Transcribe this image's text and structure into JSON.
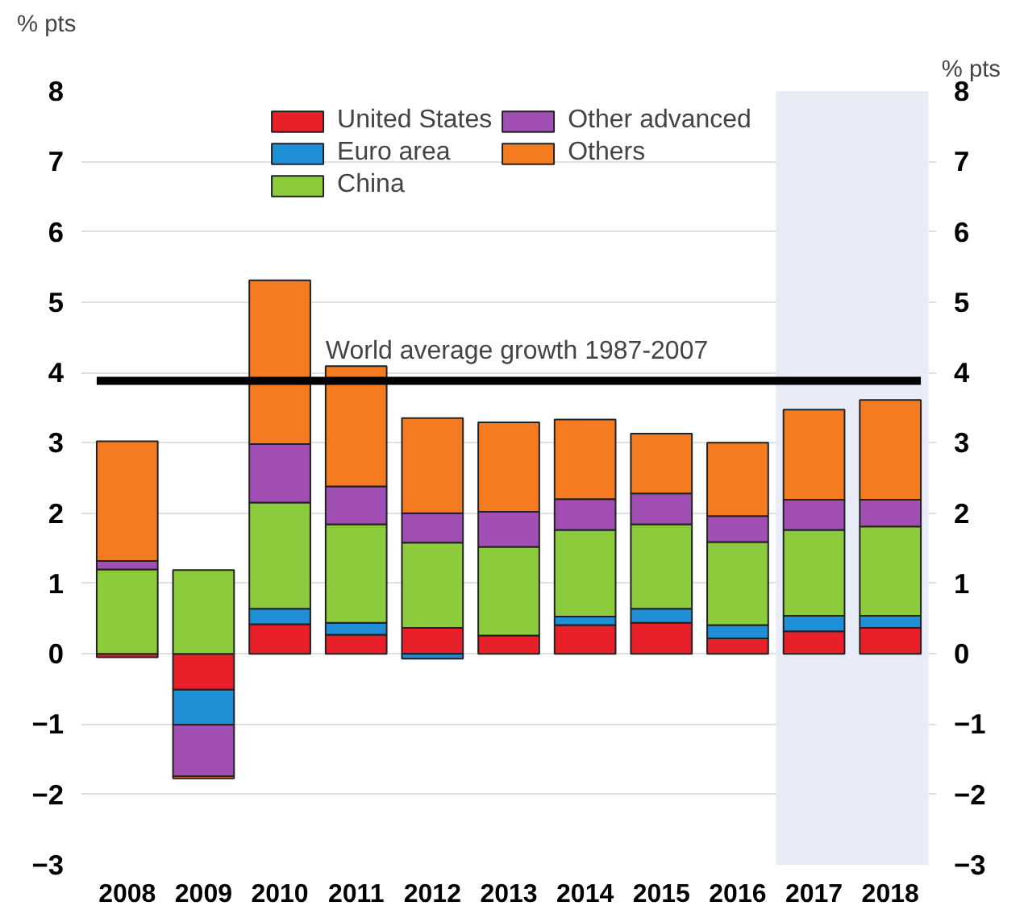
{
  "chart_data": {
    "type": "bar",
    "stacked": true,
    "categories": [
      "2008",
      "2009",
      "2010",
      "2011",
      "2012",
      "2013",
      "2014",
      "2015",
      "2016",
      "2017",
      "2018"
    ],
    "series": [
      {
        "name": "United States",
        "color": "#e8202a",
        "values": [
          -0.05,
          -0.51,
          0.42,
          0.27,
          0.37,
          0.26,
          0.41,
          0.44,
          0.22,
          0.32,
          0.37
        ]
      },
      {
        "name": "Euro area",
        "color": "#1f8fd6",
        "values": [
          0,
          -0.5,
          0.22,
          0.17,
          -0.07,
          0,
          0.12,
          0.2,
          0.19,
          0.22,
          0.17
        ]
      },
      {
        "name": "China",
        "color": "#8ccc3c",
        "values": [
          1.2,
          1.19,
          1.51,
          1.4,
          1.21,
          1.26,
          1.23,
          1.2,
          1.18,
          1.22,
          1.27
        ]
      },
      {
        "name": "Other advanced",
        "color": "#a24fb5",
        "values": [
          0.12,
          -0.73,
          0.83,
          0.54,
          0.42,
          0.5,
          0.44,
          0.44,
          0.37,
          0.43,
          0.38
        ]
      },
      {
        "name": "Others",
        "color": "#f47b20",
        "values": [
          1.7,
          -0.03,
          2.33,
          1.71,
          1.35,
          1.27,
          1.13,
          0.85,
          1.04,
          1.28,
          1.42
        ]
      }
    ],
    "ylabel": "% pts",
    "y2label": "% pts",
    "ylim": [
      -3,
      8
    ],
    "yticks": [
      -3,
      -2,
      -1,
      0,
      1,
      2,
      3,
      4,
      5,
      6,
      7,
      8
    ],
    "y2lim": [
      -3,
      8
    ],
    "y2ticks": [
      -3,
      -2,
      -1,
      0,
      1,
      2,
      3,
      4,
      5,
      6,
      7,
      8
    ],
    "ref_lines": [
      {
        "axis": "y",
        "value": 3.88,
        "label": "World average growth 1987-2007",
        "color": "#000000"
      }
    ],
    "bands": [
      {
        "axis": "x",
        "from": "2017",
        "to": "2018",
        "color": "#e8ecf6"
      }
    ],
    "grid": "y",
    "legend": "top"
  }
}
